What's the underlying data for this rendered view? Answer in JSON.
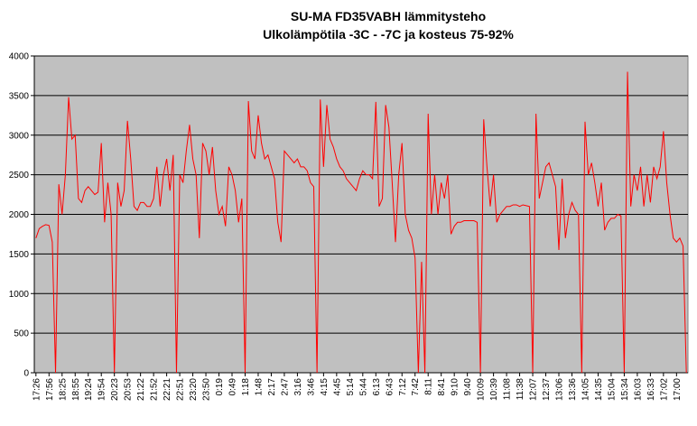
{
  "chart_data": {
    "type": "line",
    "title": "SU-MA FD35VABH lämmitysteho",
    "subtitle": "Ulkolämpötila  -3C - -7C ja kosteus 75-92%",
    "categories": [
      "17:26",
      null,
      null,
      null,
      "17:56",
      null,
      null,
      null,
      "18:25",
      null,
      null,
      null,
      "18:55",
      null,
      null,
      null,
      "19:24",
      null,
      null,
      null,
      "19:54",
      null,
      null,
      null,
      "20:23",
      null,
      null,
      null,
      "20:53",
      null,
      null,
      null,
      "21:22",
      null,
      null,
      null,
      "21:52",
      null,
      null,
      null,
      "22:21",
      null,
      null,
      null,
      "22:51",
      null,
      null,
      null,
      "23:20",
      null,
      null,
      null,
      "23:50",
      null,
      null,
      null,
      "0:19",
      null,
      null,
      null,
      "0:49",
      null,
      null,
      null,
      "1:18",
      null,
      null,
      null,
      "1:48",
      null,
      null,
      null,
      "2:17",
      null,
      null,
      null,
      "2:47",
      null,
      null,
      null,
      "3:16",
      null,
      null,
      null,
      "3:46",
      null,
      null,
      null,
      "4:15",
      null,
      null,
      null,
      "4:45",
      null,
      null,
      null,
      "5:14",
      null,
      null,
      null,
      "5:44",
      null,
      null,
      null,
      "6:13",
      null,
      null,
      null,
      "6:43",
      null,
      null,
      null,
      "7:12",
      null,
      null,
      null,
      "7:42",
      null,
      null,
      null,
      "8:11",
      null,
      null,
      null,
      "8:41",
      null,
      null,
      null,
      "9:10",
      null,
      null,
      null,
      "9:40",
      null,
      null,
      null,
      "10:09",
      null,
      null,
      null,
      "10:39",
      null,
      null,
      null,
      "11:08",
      null,
      null,
      null,
      "11:38",
      null,
      null,
      null,
      "12:07",
      null,
      null,
      null,
      "12:37",
      null,
      null,
      null,
      "13:06",
      null,
      null,
      null,
      "13:36",
      null,
      null,
      null,
      "14:05",
      null,
      null,
      null,
      "14:35",
      null,
      null,
      null,
      "15:04",
      null,
      null,
      null,
      "15:34",
      null,
      null,
      null,
      "16:03",
      null,
      null,
      null,
      "16:33",
      null,
      null,
      null,
      "17:02",
      null,
      null,
      null,
      "17:00",
      null,
      null,
      null
    ],
    "series": [
      {
        "name": "lämmitysteho",
        "color": "#ff0000",
        "values": [
          1700,
          1820,
          1850,
          1870,
          1860,
          1650,
          0,
          2380,
          2000,
          2500,
          3480,
          2950,
          3000,
          2200,
          2150,
          2300,
          2350,
          2300,
          2250,
          2280,
          2900,
          1900,
          2400,
          2000,
          0,
          2400,
          2100,
          2300,
          3180,
          2700,
          2100,
          2050,
          2150,
          2150,
          2100,
          2100,
          2200,
          2600,
          2100,
          2500,
          2700,
          2300,
          2750,
          0,
          2500,
          2400,
          2800,
          3130,
          2700,
          2500,
          1700,
          2900,
          2800,
          2500,
          2850,
          2300,
          2000,
          2100,
          1850,
          2600,
          2500,
          2300,
          1900,
          2200,
          0,
          3430,
          2800,
          2700,
          3250,
          2900,
          2700,
          2750,
          2600,
          2450,
          1900,
          1650,
          2800,
          2750,
          2700,
          2650,
          2700,
          2600,
          2600,
          2550,
          2400,
          2350,
          0,
          3450,
          2600,
          3380,
          2950,
          2850,
          2700,
          2600,
          2550,
          2450,
          2400,
          2350,
          2300,
          2450,
          2550,
          2500,
          2500,
          2450,
          3420,
          2100,
          2200,
          3380,
          3100,
          2400,
          1650,
          2500,
          2900,
          2000,
          1800,
          1700,
          1450,
          0,
          1400,
          0,
          3270,
          2000,
          2500,
          2000,
          2400,
          2200,
          2500,
          1750,
          1850,
          1900,
          1900,
          1920,
          1920,
          1920,
          1920,
          1900,
          0,
          3200,
          2600,
          2100,
          2500,
          1900,
          2000,
          2050,
          2100,
          2100,
          2120,
          2120,
          2100,
          2120,
          2110,
          2100,
          0,
          3270,
          2200,
          2400,
          2600,
          2650,
          2500,
          2350,
          1550,
          2450,
          1700,
          2000,
          2150,
          2050,
          2000,
          0,
          3170,
          2500,
          2650,
          2400,
          2100,
          2400,
          1800,
          1900,
          1950,
          1950,
          2000,
          1980,
          0,
          3800,
          2100,
          2500,
          2300,
          2600,
          2100,
          2500,
          2150,
          2600,
          2450,
          2600,
          3050,
          2400,
          2000,
          1700,
          1650,
          1700,
          1600,
          0
        ]
      }
    ],
    "ylim": [
      0,
      4000
    ],
    "yticks": [
      0,
      500,
      1000,
      1500,
      2000,
      2500,
      3000,
      3500,
      4000
    ],
    "grid": true
  }
}
